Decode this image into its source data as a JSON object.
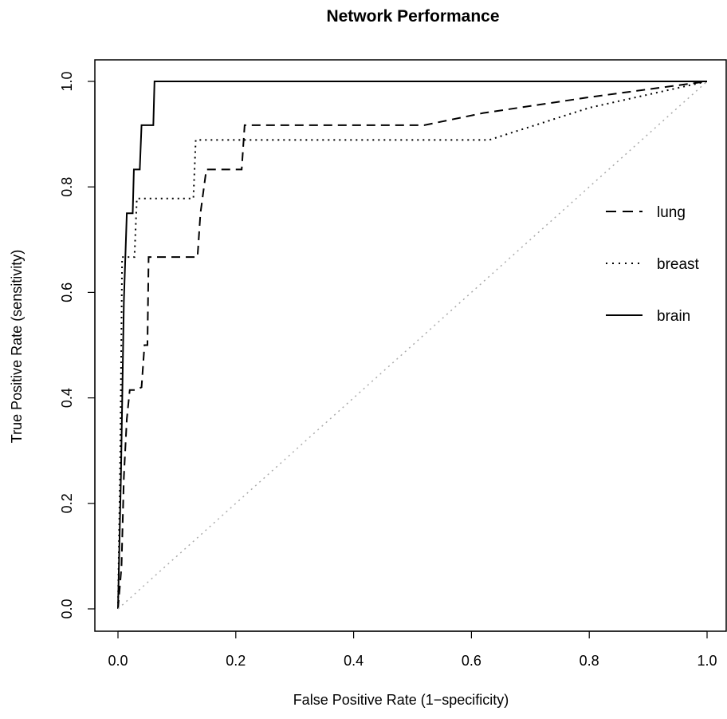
{
  "chart_data": {
    "type": "line",
    "title": "Network Performance",
    "xlabel": "False Positive Rate (1−specificity)",
    "ylabel": "True Positive Rate (sensitivity)",
    "xlim": [
      0,
      1
    ],
    "ylim": [
      0,
      1
    ],
    "x_ticks": [
      "0.0",
      "0.2",
      "0.4",
      "0.6",
      "0.8",
      "1.0"
    ],
    "y_ticks": [
      "0.0",
      "0.2",
      "0.4",
      "0.6",
      "0.8",
      "1.0"
    ],
    "grid": false,
    "legend_position": "right",
    "series": [
      {
        "name": "lung",
        "line_style": "dashed",
        "color": "#000000",
        "points": [
          [
            0,
            0
          ],
          [
            0.006,
            0.08
          ],
          [
            0.01,
            0.25
          ],
          [
            0.015,
            0.36
          ],
          [
            0.02,
            0.415
          ],
          [
            0.03,
            0.415
          ],
          [
            0.04,
            0.42
          ],
          [
            0.045,
            0.5
          ],
          [
            0.05,
            0.5
          ],
          [
            0.052,
            0.667
          ],
          [
            0.135,
            0.667
          ],
          [
            0.14,
            0.75
          ],
          [
            0.15,
            0.833
          ],
          [
            0.21,
            0.833
          ],
          [
            0.215,
            0.917
          ],
          [
            0.52,
            0.917
          ],
          [
            0.62,
            0.94
          ],
          [
            0.8,
            0.97
          ],
          [
            1.0,
            1.0
          ]
        ]
      },
      {
        "name": "breast",
        "line_style": "dotted",
        "color": "#000000",
        "points": [
          [
            0,
            0
          ],
          [
            0.004,
            0.3
          ],
          [
            0.007,
            0.667
          ],
          [
            0.028,
            0.667
          ],
          [
            0.032,
            0.778
          ],
          [
            0.128,
            0.778
          ],
          [
            0.132,
            0.889
          ],
          [
            0.63,
            0.889
          ],
          [
            0.8,
            0.95
          ],
          [
            1.0,
            1.0
          ]
        ]
      },
      {
        "name": "brain",
        "line_style": "solid",
        "color": "#000000",
        "points": [
          [
            0,
            0
          ],
          [
            0.005,
            0.25
          ],
          [
            0.01,
            0.583
          ],
          [
            0.015,
            0.75
          ],
          [
            0.025,
            0.75
          ],
          [
            0.027,
            0.833
          ],
          [
            0.037,
            0.833
          ],
          [
            0.04,
            0.917
          ],
          [
            0.06,
            0.917
          ],
          [
            0.062,
            1.0
          ],
          [
            1.0,
            1.0
          ]
        ]
      },
      {
        "name": "",
        "line_style": "dotted",
        "color": "#aaaaaa",
        "points": [
          [
            0,
            0
          ],
          [
            1,
            1
          ]
        ]
      }
    ]
  }
}
